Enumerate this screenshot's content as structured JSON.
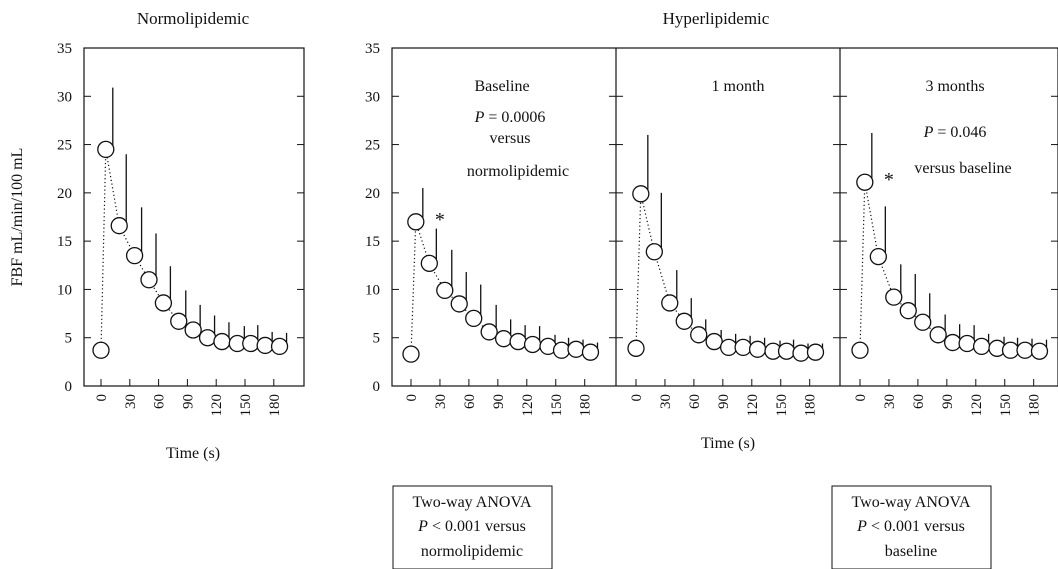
{
  "chart_data": [
    {
      "type": "scatter",
      "panel": "normo",
      "group_title": "Normolipidemic",
      "ylabel": "FBF mL/min/100 mL",
      "xlabel": "Time (s)",
      "ylim": [
        0,
        35
      ],
      "yticks": [
        "0",
        "5",
        "10",
        "15",
        "20",
        "25",
        "30",
        "35"
      ],
      "xticks": [
        "0",
        "30",
        "60",
        "90",
        "120",
        "150",
        "180"
      ],
      "series": [
        {
          "x": [
            0,
            5,
            19,
            35,
            50,
            65,
            81,
            96,
            111,
            126,
            142,
            156,
            171,
            186
          ],
          "y": [
            3.7,
            24.5,
            16.6,
            13.5,
            11.0,
            8.6,
            6.7,
            5.8,
            5.0,
            4.6,
            4.4,
            4.4,
            4.2,
            4.1
          ],
          "err": [
            0,
            6.4,
            7.4,
            5.0,
            4.8,
            3.8,
            3.2,
            2.6,
            2.3,
            2.0,
            1.8,
            1.9,
            1.4,
            1.4
          ]
        }
      ],
      "annotations": []
    },
    {
      "type": "scatter",
      "panel": "hyper-baseline",
      "label": "Baseline",
      "p_text": "P = 0.0006",
      "versus_text": [
        "versus",
        "normolipidemic"
      ],
      "ylim": [
        0,
        35
      ],
      "yticks": [
        "0",
        "5",
        "10",
        "15",
        "20",
        "25",
        "30",
        "35"
      ],
      "xticks": [
        "0",
        "30",
        "60",
        "90",
        "120",
        "150",
        "180"
      ],
      "star": "*",
      "series": [
        {
          "x": [
            0,
            5,
            19,
            35,
            50,
            65,
            81,
            96,
            111,
            126,
            142,
            156,
            171,
            186
          ],
          "y": [
            3.3,
            17.0,
            12.7,
            9.9,
            8.5,
            7.0,
            5.6,
            4.9,
            4.6,
            4.3,
            4.1,
            3.7,
            3.8,
            3.5
          ],
          "err": [
            0,
            3.5,
            3.6,
            4.2,
            3.3,
            3.5,
            2.8,
            2.0,
            1.7,
            1.9,
            1.2,
            1.3,
            1.0,
            1.0
          ]
        }
      ]
    },
    {
      "type": "scatter",
      "panel": "hyper-1month",
      "label": "1 month",
      "ylim": [
        0,
        35
      ],
      "xticks": [
        "0",
        "30",
        "60",
        "90",
        "120",
        "150",
        "180"
      ],
      "series": [
        {
          "x": [
            0,
            5,
            19,
            35,
            50,
            65,
            81,
            96,
            111,
            126,
            142,
            156,
            171,
            186
          ],
          "y": [
            3.9,
            19.9,
            13.9,
            8.6,
            6.7,
            5.3,
            4.6,
            4.0,
            4.0,
            3.8,
            3.6,
            3.6,
            3.4,
            3.5
          ],
          "err": [
            0,
            6.1,
            6.1,
            3.4,
            2.4,
            1.6,
            1.2,
            1.4,
            1.2,
            1.2,
            1.1,
            1.2,
            1.0,
            0.9
          ]
        }
      ]
    },
    {
      "type": "scatter",
      "panel": "hyper-3months",
      "label": "3 months",
      "p_text": "P = 0.046",
      "versus_text": [
        "versus baseline"
      ],
      "ylim": [
        0,
        35
      ],
      "xticks": [
        "0",
        "30",
        "60",
        "90",
        "120",
        "150",
        "180"
      ],
      "star": "*",
      "series": [
        {
          "x": [
            0,
            5,
            19,
            35,
            50,
            65,
            81,
            96,
            111,
            126,
            142,
            156,
            171,
            186
          ],
          "y": [
            3.7,
            21.1,
            13.4,
            9.2,
            7.8,
            6.6,
            5.3,
            4.5,
            4.4,
            4.1,
            3.9,
            3.7,
            3.7,
            3.6
          ],
          "err": [
            0,
            5.1,
            5.2,
            3.4,
            3.8,
            3.0,
            2.1,
            1.9,
            1.9,
            1.3,
            1.2,
            1.3,
            1.2,
            1.2
          ]
        }
      ]
    }
  ],
  "hyper_title": "Hyperlipidemic",
  "hyper_xlabel": "Time (s)",
  "anova_left": [
    "Two-way ANOVA",
    "P < 0.001 versus",
    "normolipidemic"
  ],
  "anova_right": [
    "Two-way ANOVA",
    "P < 0.001 versus",
    "baseline"
  ]
}
